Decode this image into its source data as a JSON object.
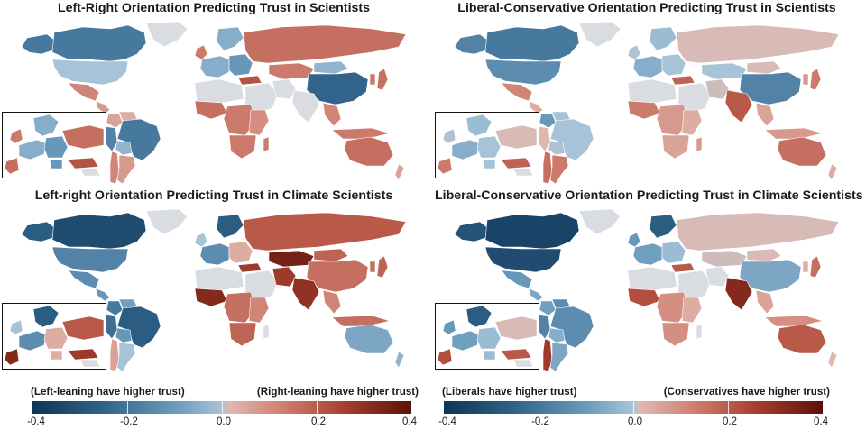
{
  "colors": {
    "none": "#d9dde2",
    "scale": [
      "#0d3556",
      "#2f6188",
      "#6b9bbd",
      "#a8c4d8",
      "#e0b8b0",
      "#cf7f70",
      "#a8402f",
      "#5b1108"
    ]
  },
  "panels": [
    {
      "title": "Left-Right Orientation Predicting Trust in Scientists",
      "values": {
        "canada": -0.24,
        "greenland": null,
        "alaska": -0.24,
        "usa": -0.06,
        "mexico": 0.16,
        "central_america": 0.12,
        "colombia": 0.1,
        "venezuela": 0.08,
        "peru": -0.22,
        "brazil": -0.24,
        "bolivia": -0.1,
        "argentina": 0.12,
        "chile": 0.16,
        "uk_ireland": 0.18,
        "scandinavia": -0.12,
        "west_europe": -0.12,
        "east_europe": -0.18,
        "russia": 0.2,
        "kazakhstan": 0.18,
        "mongolia": -0.1,
        "china": -0.28,
        "turkey": 0.25,
        "middle_east": null,
        "iran": null,
        "india": null,
        "southeast_asia": 0.16,
        "japan": 0.2,
        "korea": 0.18,
        "indonesia": 0.18,
        "nw_africa": null,
        "west_africa": 0.2,
        "central_africa": 0.18,
        "east_africa": 0.14,
        "south_africa": 0.18,
        "madagascar": 0.18,
        "australia": 0.2,
        "new_zealand": 0.1
      }
    },
    {
      "title": "Liberal-Conservative Orientation Predicting Trust in Scientists",
      "values": {
        "canada": -0.24,
        "greenland": null,
        "alaska": -0.22,
        "usa": -0.2,
        "mexico": 0.16,
        "central_america": 0.08,
        "colombia": -0.18,
        "venezuela": -0.06,
        "peru": 0.06,
        "brazil": -0.06,
        "bolivia": -0.04,
        "argentina": 0.18,
        "chile": 0.2,
        "uk_ireland": -0.04,
        "scandinavia": -0.08,
        "west_europe": -0.12,
        "east_europe": -0.06,
        "russia": 0.04,
        "kazakhstan": -0.06,
        "mongolia": 0.04,
        "china": -0.22,
        "turkey": 0.22,
        "middle_east": null,
        "iran": 0.02,
        "india": 0.24,
        "southeast_asia": 0.1,
        "japan": 0.18,
        "korea": 0.12,
        "indonesia": 0.12,
        "nw_africa": null,
        "west_africa": 0.18,
        "central_africa": 0.12,
        "east_africa": 0.08,
        "south_africa": 0.1,
        "madagascar": 0.12,
        "australia": 0.2,
        "new_zealand": 0.08
      }
    },
    {
      "title": "Left-right Orientation Predicting Trust in Climate Scientists",
      "values": {
        "canada": -0.34,
        "greenland": null,
        "alaska": -0.3,
        "usa": -0.22,
        "mexico": -0.2,
        "central_america": -0.18,
        "colombia": -0.24,
        "venezuela": -0.16,
        "peru": -0.26,
        "brazil": -0.3,
        "bolivia": -0.18,
        "argentina": -0.06,
        "chile": 0.1,
        "uk_ireland": -0.06,
        "scandinavia": -0.3,
        "west_europe": -0.2,
        "east_europe": 0.08,
        "russia": 0.24,
        "kazakhstan": 0.36,
        "mongolia": 0.22,
        "china": 0.2,
        "turkey": 0.3,
        "middle_east": null,
        "iran": 0.3,
        "india": 0.32,
        "southeast_asia": 0.16,
        "japan": 0.22,
        "korea": 0.2,
        "indonesia": 0.2,
        "nw_africa": null,
        "west_africa": 0.34,
        "central_africa": 0.2,
        "east_africa": 0.16,
        "south_africa": 0.22,
        "madagascar": null,
        "australia": -0.14,
        "new_zealand": -0.1
      }
    },
    {
      "title": "Liberal-Conservative Orientation Predicting Trust in Climate Scientists",
      "values": {
        "canada": -0.36,
        "greenland": null,
        "alaska": -0.32,
        "usa": -0.34,
        "mexico": -0.18,
        "central_america": -0.14,
        "colombia": -0.16,
        "venezuela": -0.2,
        "peru": -0.22,
        "brazil": -0.2,
        "bolivia": -0.12,
        "argentina": -0.14,
        "chile": 0.3,
        "uk_ireland": -0.18,
        "scandinavia": -0.3,
        "west_europe": -0.16,
        "east_europe": -0.08,
        "russia": 0.04,
        "kazakhstan": 0.02,
        "mongolia": 0.04,
        "china": -0.14,
        "turkey": 0.24,
        "middle_east": null,
        "iran": null,
        "india": 0.34,
        "southeast_asia": 0.1,
        "japan": 0.2,
        "korea": 0.08,
        "indonesia": 0.14,
        "nw_africa": null,
        "west_africa": 0.26,
        "central_africa": 0.14,
        "east_africa": 0.08,
        "south_africa": 0.14,
        "madagascar": null,
        "australia": 0.24,
        "new_zealand": 0.06
      }
    }
  ],
  "legends": [
    {
      "left_label": "(Left-leaning have higher trust)",
      "right_label": "(Right-leaning have higher trust)",
      "ticks": [
        "-0.4",
        "-0.2",
        "0.0",
        "0.2",
        "0.4"
      ]
    },
    {
      "left_label": "(Liberals have higher trust)",
      "right_label": "(Conservatives have higher trust)",
      "ticks": [
        "-0.4",
        "-0.2",
        "0.0",
        "0.2",
        "0.4"
      ]
    }
  ],
  "scale": {
    "min": -0.4,
    "max": 0.4
  }
}
